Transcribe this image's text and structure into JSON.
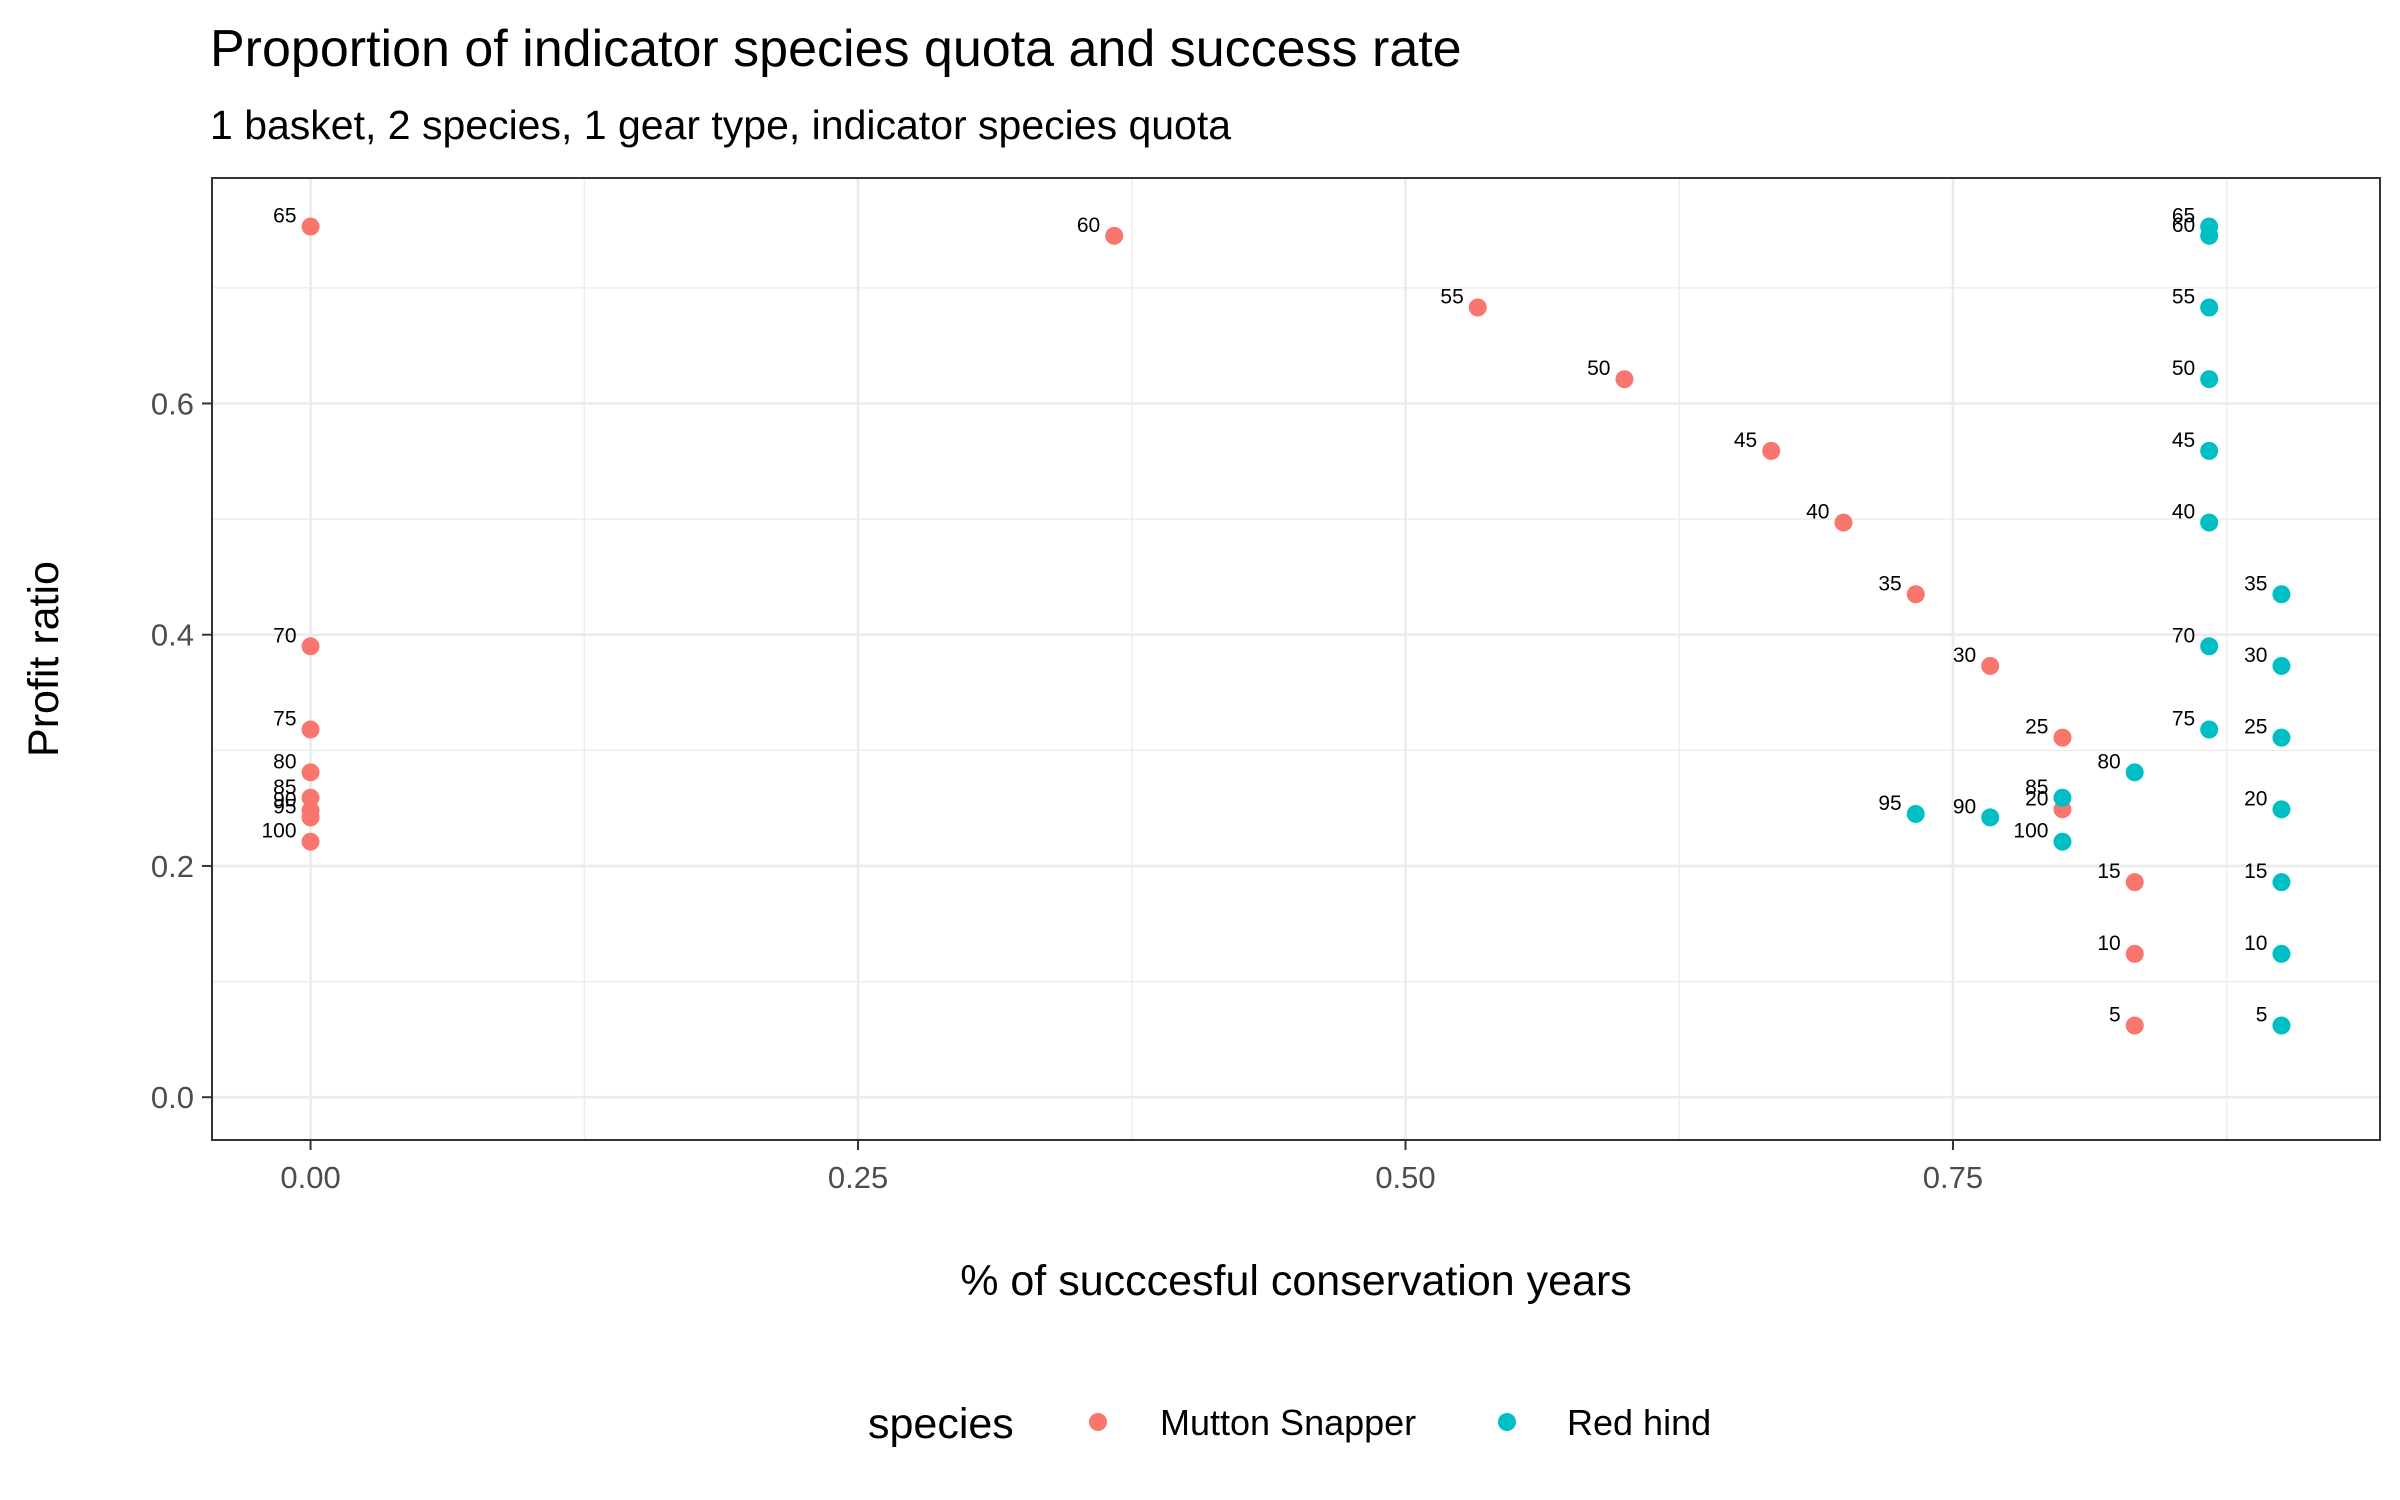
{
  "chart_data": {
    "type": "scatter",
    "title": "Proportion of indicator species quota and success rate",
    "subtitle": "1 basket, 2 species, 1 gear type, indicator species quota",
    "xlabel": "% of succcesful conservation years",
    "ylabel": "Profit ratio",
    "xlim": [
      -0.045,
      0.945
    ],
    "ylim": [
      -0.037,
      0.795
    ],
    "x_ticks": [
      0.0,
      0.25,
      0.5,
      0.75
    ],
    "x_tick_labels": [
      "0.00",
      "0.25",
      "0.50",
      "0.75"
    ],
    "x_minor_ticks": [
      0.125,
      0.375,
      0.625,
      0.875
    ],
    "y_ticks": [
      0.0,
      0.2,
      0.4,
      0.6
    ],
    "y_tick_labels": [
      "0.0",
      "0.2",
      "0.4",
      "0.6"
    ],
    "y_minor_ticks": [
      0.1,
      0.3,
      0.5,
      0.7
    ],
    "grid": true,
    "legend": {
      "title": "species",
      "position": "bottom"
    },
    "series": [
      {
        "name": "Mutton Snapper",
        "color": "#F8766D",
        "points": [
          {
            "label": "5",
            "x": 0.833,
            "y": 0.062
          },
          {
            "label": "10",
            "x": 0.833,
            "y": 0.124
          },
          {
            "label": "15",
            "x": 0.833,
            "y": 0.186
          },
          {
            "label": "20",
            "x": 0.8,
            "y": 0.249
          },
          {
            "label": "25",
            "x": 0.8,
            "y": 0.311
          },
          {
            "label": "30",
            "x": 0.767,
            "y": 0.373
          },
          {
            "label": "35",
            "x": 0.733,
            "y": 0.435
          },
          {
            "label": "40",
            "x": 0.7,
            "y": 0.497
          },
          {
            "label": "45",
            "x": 0.667,
            "y": 0.559
          },
          {
            "label": "50",
            "x": 0.6,
            "y": 0.621
          },
          {
            "label": "55",
            "x": 0.533,
            "y": 0.683
          },
          {
            "label": "60",
            "x": 0.367,
            "y": 0.745
          },
          {
            "label": "65",
            "x": 0.0,
            "y": 0.753
          },
          {
            "label": "70",
            "x": 0.0,
            "y": 0.39
          },
          {
            "label": "75",
            "x": 0.0,
            "y": 0.318
          },
          {
            "label": "80",
            "x": 0.0,
            "y": 0.281
          },
          {
            "label": "85",
            "x": 0.0,
            "y": 0.259
          },
          {
            "label": "90",
            "x": 0.0,
            "y": 0.248
          },
          {
            "label": "95",
            "x": 0.0,
            "y": 0.242
          },
          {
            "label": "100",
            "x": 0.0,
            "y": 0.221
          }
        ]
      },
      {
        "name": "Red hind",
        "color": "#00BFC4",
        "points": [
          {
            "label": "5",
            "x": 0.9,
            "y": 0.062
          },
          {
            "label": "10",
            "x": 0.9,
            "y": 0.124
          },
          {
            "label": "15",
            "x": 0.9,
            "y": 0.186
          },
          {
            "label": "20",
            "x": 0.9,
            "y": 0.249
          },
          {
            "label": "25",
            "x": 0.9,
            "y": 0.311
          },
          {
            "label": "30",
            "x": 0.9,
            "y": 0.373
          },
          {
            "label": "35",
            "x": 0.9,
            "y": 0.435
          },
          {
            "label": "40",
            "x": 0.867,
            "y": 0.497
          },
          {
            "label": "45",
            "x": 0.867,
            "y": 0.559
          },
          {
            "label": "50",
            "x": 0.867,
            "y": 0.621
          },
          {
            "label": "55",
            "x": 0.867,
            "y": 0.683
          },
          {
            "label": "60",
            "x": 0.867,
            "y": 0.745
          },
          {
            "label": "65",
            "x": 0.867,
            "y": 0.753
          },
          {
            "label": "70",
            "x": 0.867,
            "y": 0.39
          },
          {
            "label": "75",
            "x": 0.867,
            "y": 0.318
          },
          {
            "label": "80",
            "x": 0.833,
            "y": 0.281
          },
          {
            "label": "85",
            "x": 0.8,
            "y": 0.259
          },
          {
            "label": "90",
            "x": 0.767,
            "y": 0.242
          },
          {
            "label": "95",
            "x": 0.733,
            "y": 0.245
          },
          {
            "label": "100",
            "x": 0.8,
            "y": 0.221
          }
        ]
      }
    ]
  }
}
